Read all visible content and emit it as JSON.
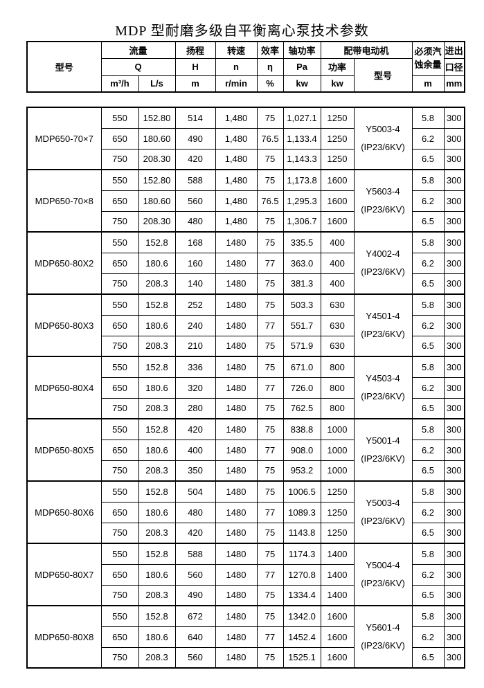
{
  "title": "MDP 型耐磨多级自平衡离心泵技术参数",
  "columns": {
    "model": "型号",
    "flow": {
      "label": "流量",
      "symbol": "Q",
      "unit_m3h": "m³/h",
      "unit_ls": "L/s"
    },
    "head": {
      "label": "扬程",
      "symbol": "H",
      "unit": "m"
    },
    "speed": {
      "label": "转速",
      "symbol": "n",
      "unit": "r/min"
    },
    "efficiency": {
      "label": "效率",
      "symbol": "η",
      "unit": "%"
    },
    "shaft_power": {
      "label": "轴功率",
      "symbol": "Pa",
      "unit": "kw"
    },
    "motor": {
      "label": "配带电动机",
      "power": "功率",
      "power_unit": "kw",
      "model": "型号"
    },
    "npsh": {
      "label": "必须汽蚀余量",
      "unit": "m"
    },
    "ports": {
      "label_top": "进出",
      "label_bottom": "口径",
      "unit": "mm"
    }
  },
  "groups": [
    {
      "model": "MDP650-70×7",
      "motor_model": "Y5003-4",
      "motor_spec": "(IP23/6KV)",
      "rows": [
        {
          "m3h": "550",
          "ls": "152.80",
          "h": "514",
          "n": "1,480",
          "eta": "75",
          "pa": "1,027.1",
          "kw": "1250",
          "npsh": "5.8",
          "dn": "300"
        },
        {
          "m3h": "650",
          "ls": "180.60",
          "h": "490",
          "n": "1,480",
          "eta": "76.5",
          "pa": "1,133.4",
          "kw": "1250",
          "npsh": "6.2",
          "dn": "300"
        },
        {
          "m3h": "750",
          "ls": "208.30",
          "h": "420",
          "n": "1,480",
          "eta": "75",
          "pa": "1,143.3",
          "kw": "1250",
          "npsh": "6.5",
          "dn": "300"
        }
      ]
    },
    {
      "model": "MDP650-70×8",
      "motor_model": "Y5603-4",
      "motor_spec": "(IP23/6KV)",
      "rows": [
        {
          "m3h": "550",
          "ls": "152.80",
          "h": "588",
          "n": "1,480",
          "eta": "75",
          "pa": "1,173.8",
          "kw": "1600",
          "npsh": "5.8",
          "dn": "300"
        },
        {
          "m3h": "650",
          "ls": "180.60",
          "h": "560",
          "n": "1,480",
          "eta": "76.5",
          "pa": "1,295.3",
          "kw": "1600",
          "npsh": "6.2",
          "dn": "300"
        },
        {
          "m3h": "750",
          "ls": "208.30",
          "h": "480",
          "n": "1,480",
          "eta": "75",
          "pa": "1,306.7",
          "kw": "1600",
          "npsh": "6.5",
          "dn": "300"
        }
      ]
    },
    {
      "model": "MDP650-80X2",
      "motor_model": "Y4002-4",
      "motor_spec": "(IP23/6KV)",
      "rows": [
        {
          "m3h": "550",
          "ls": "152.8",
          "h": "168",
          "n": "1480",
          "eta": "75",
          "pa": "335.5",
          "kw": "400",
          "npsh": "5.8",
          "dn": "300"
        },
        {
          "m3h": "650",
          "ls": "180.6",
          "h": "160",
          "n": "1480",
          "eta": "77",
          "pa": "363.0",
          "kw": "400",
          "npsh": "6.2",
          "dn": "300"
        },
        {
          "m3h": "750",
          "ls": "208.3",
          "h": "140",
          "n": "1480",
          "eta": "75",
          "pa": "381.3",
          "kw": "400",
          "npsh": "6.5",
          "dn": "300"
        }
      ]
    },
    {
      "model": "MDP650-80X3",
      "motor_model": "Y4501-4",
      "motor_spec": "(IP23/6KV)",
      "rows": [
        {
          "m3h": "550",
          "ls": "152.8",
          "h": "252",
          "n": "1480",
          "eta": "75",
          "pa": "503.3",
          "kw": "630",
          "npsh": "5.8",
          "dn": "300"
        },
        {
          "m3h": "650",
          "ls": "180.6",
          "h": "240",
          "n": "1480",
          "eta": "77",
          "pa": "551.7",
          "kw": "630",
          "npsh": "6.2",
          "dn": "300"
        },
        {
          "m3h": "750",
          "ls": "208.3",
          "h": "210",
          "n": "1480",
          "eta": "75",
          "pa": "571.9",
          "kw": "630",
          "npsh": "6.5",
          "dn": "300"
        }
      ]
    },
    {
      "model": "MDP650-80X4",
      "motor_model": "Y4503-4",
      "motor_spec": "(IP23/6KV)",
      "rows": [
        {
          "m3h": "550",
          "ls": "152.8",
          "h": "336",
          "n": "1480",
          "eta": "75",
          "pa": "671.0",
          "kw": "800",
          "npsh": "5.8",
          "dn": "300"
        },
        {
          "m3h": "650",
          "ls": "180.6",
          "h": "320",
          "n": "1480",
          "eta": "77",
          "pa": "726.0",
          "kw": "800",
          "npsh": "6.2",
          "dn": "300"
        },
        {
          "m3h": "750",
          "ls": "208.3",
          "h": "280",
          "n": "1480",
          "eta": "75",
          "pa": "762.5",
          "kw": "800",
          "npsh": "6.5",
          "dn": "300"
        }
      ]
    },
    {
      "model": "MDP650-80X5",
      "motor_model": "Y5001-4",
      "motor_spec": "(IP23/6KV)",
      "rows": [
        {
          "m3h": "550",
          "ls": "152.8",
          "h": "420",
          "n": "1480",
          "eta": "75",
          "pa": "838.8",
          "kw": "1000",
          "npsh": "5.8",
          "dn": "300"
        },
        {
          "m3h": "650",
          "ls": "180.6",
          "h": "400",
          "n": "1480",
          "eta": "77",
          "pa": "908.0",
          "kw": "1000",
          "npsh": "6.2",
          "dn": "300"
        },
        {
          "m3h": "750",
          "ls": "208.3",
          "h": "350",
          "n": "1480",
          "eta": "75",
          "pa": "953.2",
          "kw": "1000",
          "npsh": "6.5",
          "dn": "300"
        }
      ]
    },
    {
      "model": "MDP650-80X6",
      "motor_model": "Y5003-4",
      "motor_spec": "(IP23/6KV)",
      "rows": [
        {
          "m3h": "550",
          "ls": "152.8",
          "h": "504",
          "n": "1480",
          "eta": "75",
          "pa": "1006.5",
          "kw": "1250",
          "npsh": "5.8",
          "dn": "300"
        },
        {
          "m3h": "650",
          "ls": "180.6",
          "h": "480",
          "n": "1480",
          "eta": "77",
          "pa": "1089.3",
          "kw": "1250",
          "npsh": "6.2",
          "dn": "300"
        },
        {
          "m3h": "750",
          "ls": "208.3",
          "h": "420",
          "n": "1480",
          "eta": "75",
          "pa": "1143.8",
          "kw": "1250",
          "npsh": "6.5",
          "dn": "300"
        }
      ]
    },
    {
      "model": "MDP650-80X7",
      "motor_model": "Y5004-4",
      "motor_spec": "(IP23/6KV)",
      "rows": [
        {
          "m3h": "550",
          "ls": "152.8",
          "h": "588",
          "n": "1480",
          "eta": "75",
          "pa": "1174.3",
          "kw": "1400",
          "npsh": "5.8",
          "dn": "300"
        },
        {
          "m3h": "650",
          "ls": "180.6",
          "h": "560",
          "n": "1480",
          "eta": "77",
          "pa": "1270.8",
          "kw": "1400",
          "npsh": "6.2",
          "dn": "300"
        },
        {
          "m3h": "750",
          "ls": "208.3",
          "h": "490",
          "n": "1480",
          "eta": "75",
          "pa": "1334.4",
          "kw": "1400",
          "npsh": "6.5",
          "dn": "300"
        }
      ]
    },
    {
      "model": "MDP650-80X8",
      "motor_model": "Y5601-4",
      "motor_spec": "(IP23/6KV)",
      "rows": [
        {
          "m3h": "550",
          "ls": "152.8",
          "h": "672",
          "n": "1480",
          "eta": "75",
          "pa": "1342.0",
          "kw": "1600",
          "npsh": "5.8",
          "dn": "300"
        },
        {
          "m3h": "650",
          "ls": "180.6",
          "h": "640",
          "n": "1480",
          "eta": "77",
          "pa": "1452.4",
          "kw": "1600",
          "npsh": "6.2",
          "dn": "300"
        },
        {
          "m3h": "750",
          "ls": "208.3",
          "h": "560",
          "n": "1480",
          "eta": "75",
          "pa": "1525.1",
          "kw": "1600",
          "npsh": "6.5",
          "dn": "300"
        }
      ]
    }
  ],
  "colors": {
    "text": "#000000",
    "border": "#000000",
    "background": "#ffffff"
  }
}
